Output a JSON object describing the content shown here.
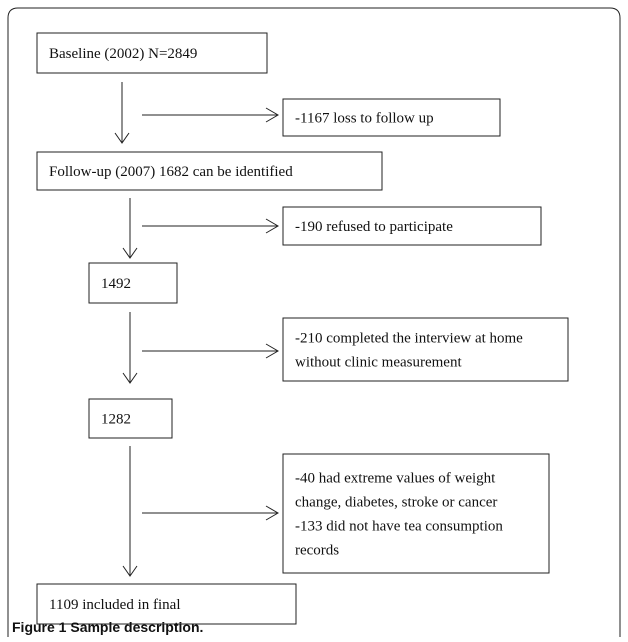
{
  "nodes": [
    {
      "lines": [
        "Baseline (2002) N=2849"
      ]
    },
    {
      "lines": [
        "-1167 loss to follow up"
      ]
    },
    {
      "lines": [
        "Follow-up (2007) 1682 can be identified"
      ]
    },
    {
      "lines": [
        "-190 refused to participate"
      ]
    },
    {
      "lines": [
        "1492"
      ]
    },
    {
      "lines": [
        "-210 completed the interview at home",
        "without clinic measurement"
      ]
    },
    {
      "lines": [
        "1282"
      ]
    },
    {
      "lines": [
        "-40 had extreme values of weight",
        "change, diabetes, stroke or cancer",
        "-133 did not have tea consumption",
        "records"
      ]
    },
    {
      "lines": [
        "1109 included in final"
      ]
    }
  ],
  "caption": {
    "label": "Figure 1",
    "text": "Sample description."
  }
}
